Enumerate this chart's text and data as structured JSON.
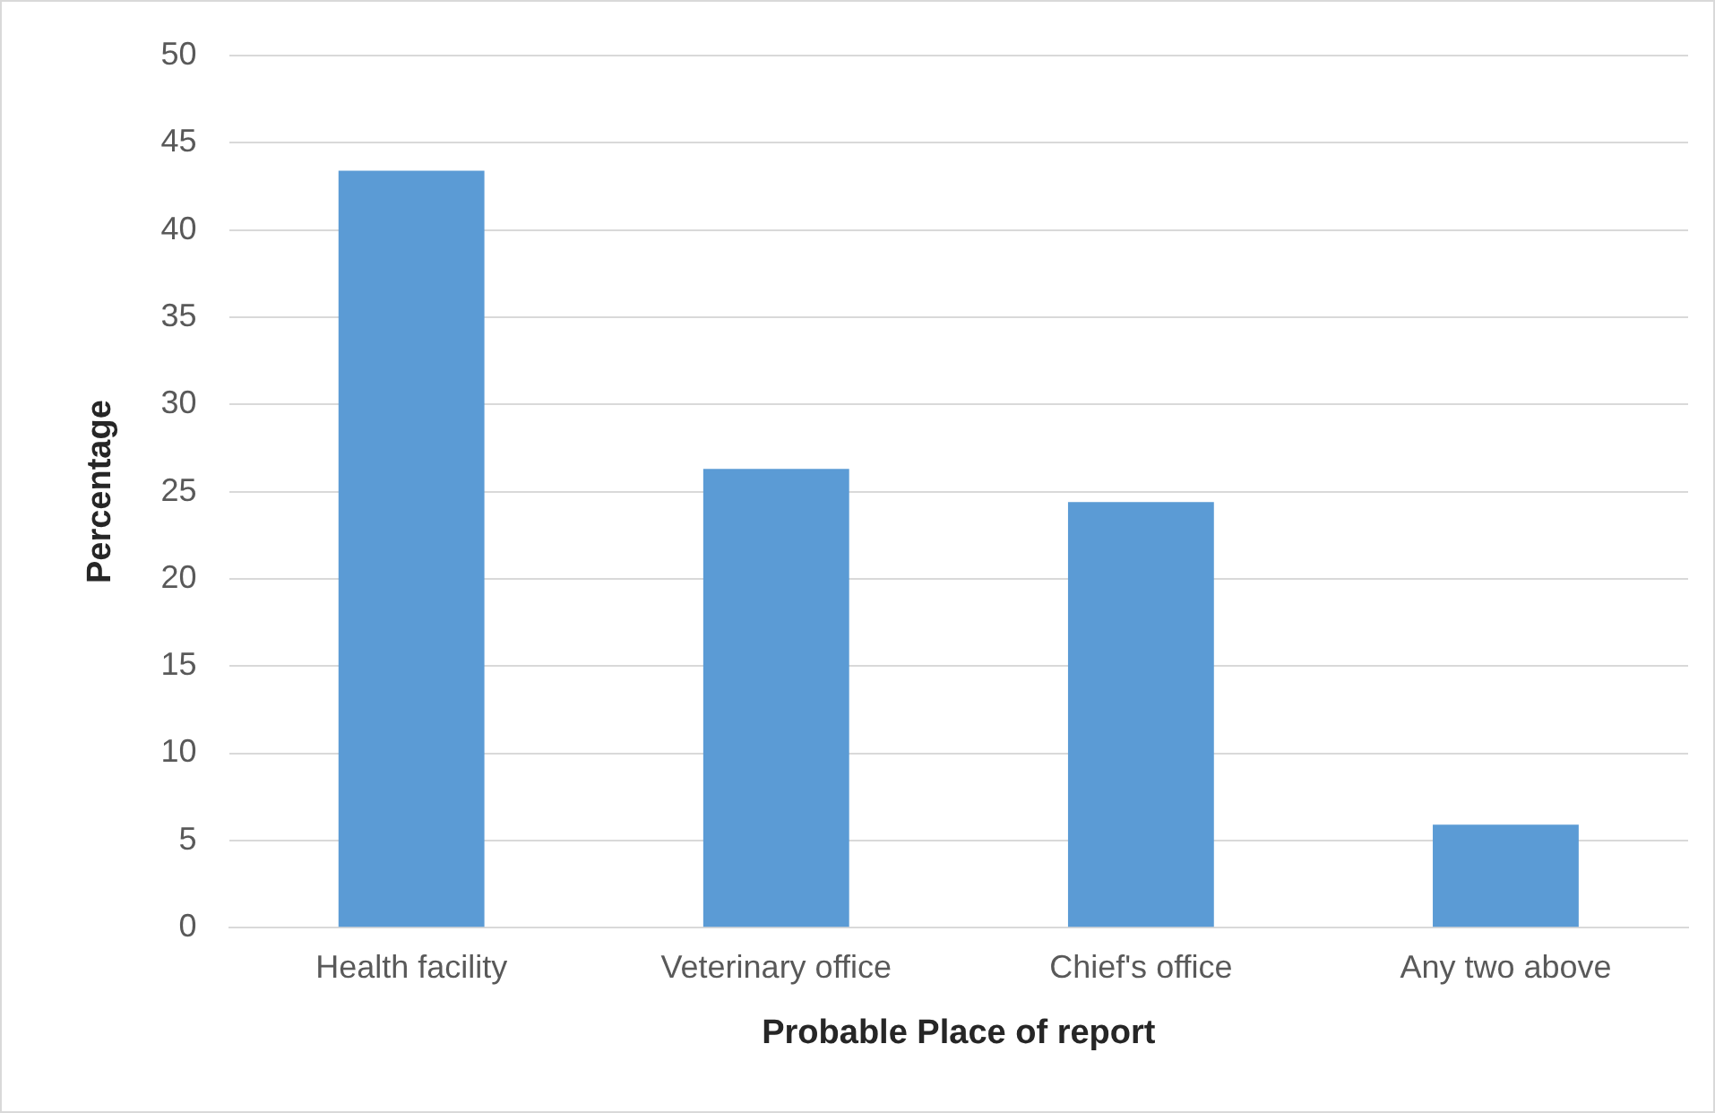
{
  "chart_data": {
    "type": "bar",
    "xlabel": "Probable Place of report",
    "ylabel": "Percentage",
    "categories": [
      "Health facility",
      "Veterinary office",
      "Chief's office",
      "Any two above"
    ],
    "values": [
      43.4,
      26.3,
      24.4,
      5.9
    ],
    "color": "#5b9bd5",
    "ylim": [
      0,
      50
    ],
    "yticks": [
      0,
      5,
      10,
      15,
      20,
      25,
      30,
      35,
      40,
      45,
      50
    ],
    "grid": "y",
    "legend": false
  }
}
